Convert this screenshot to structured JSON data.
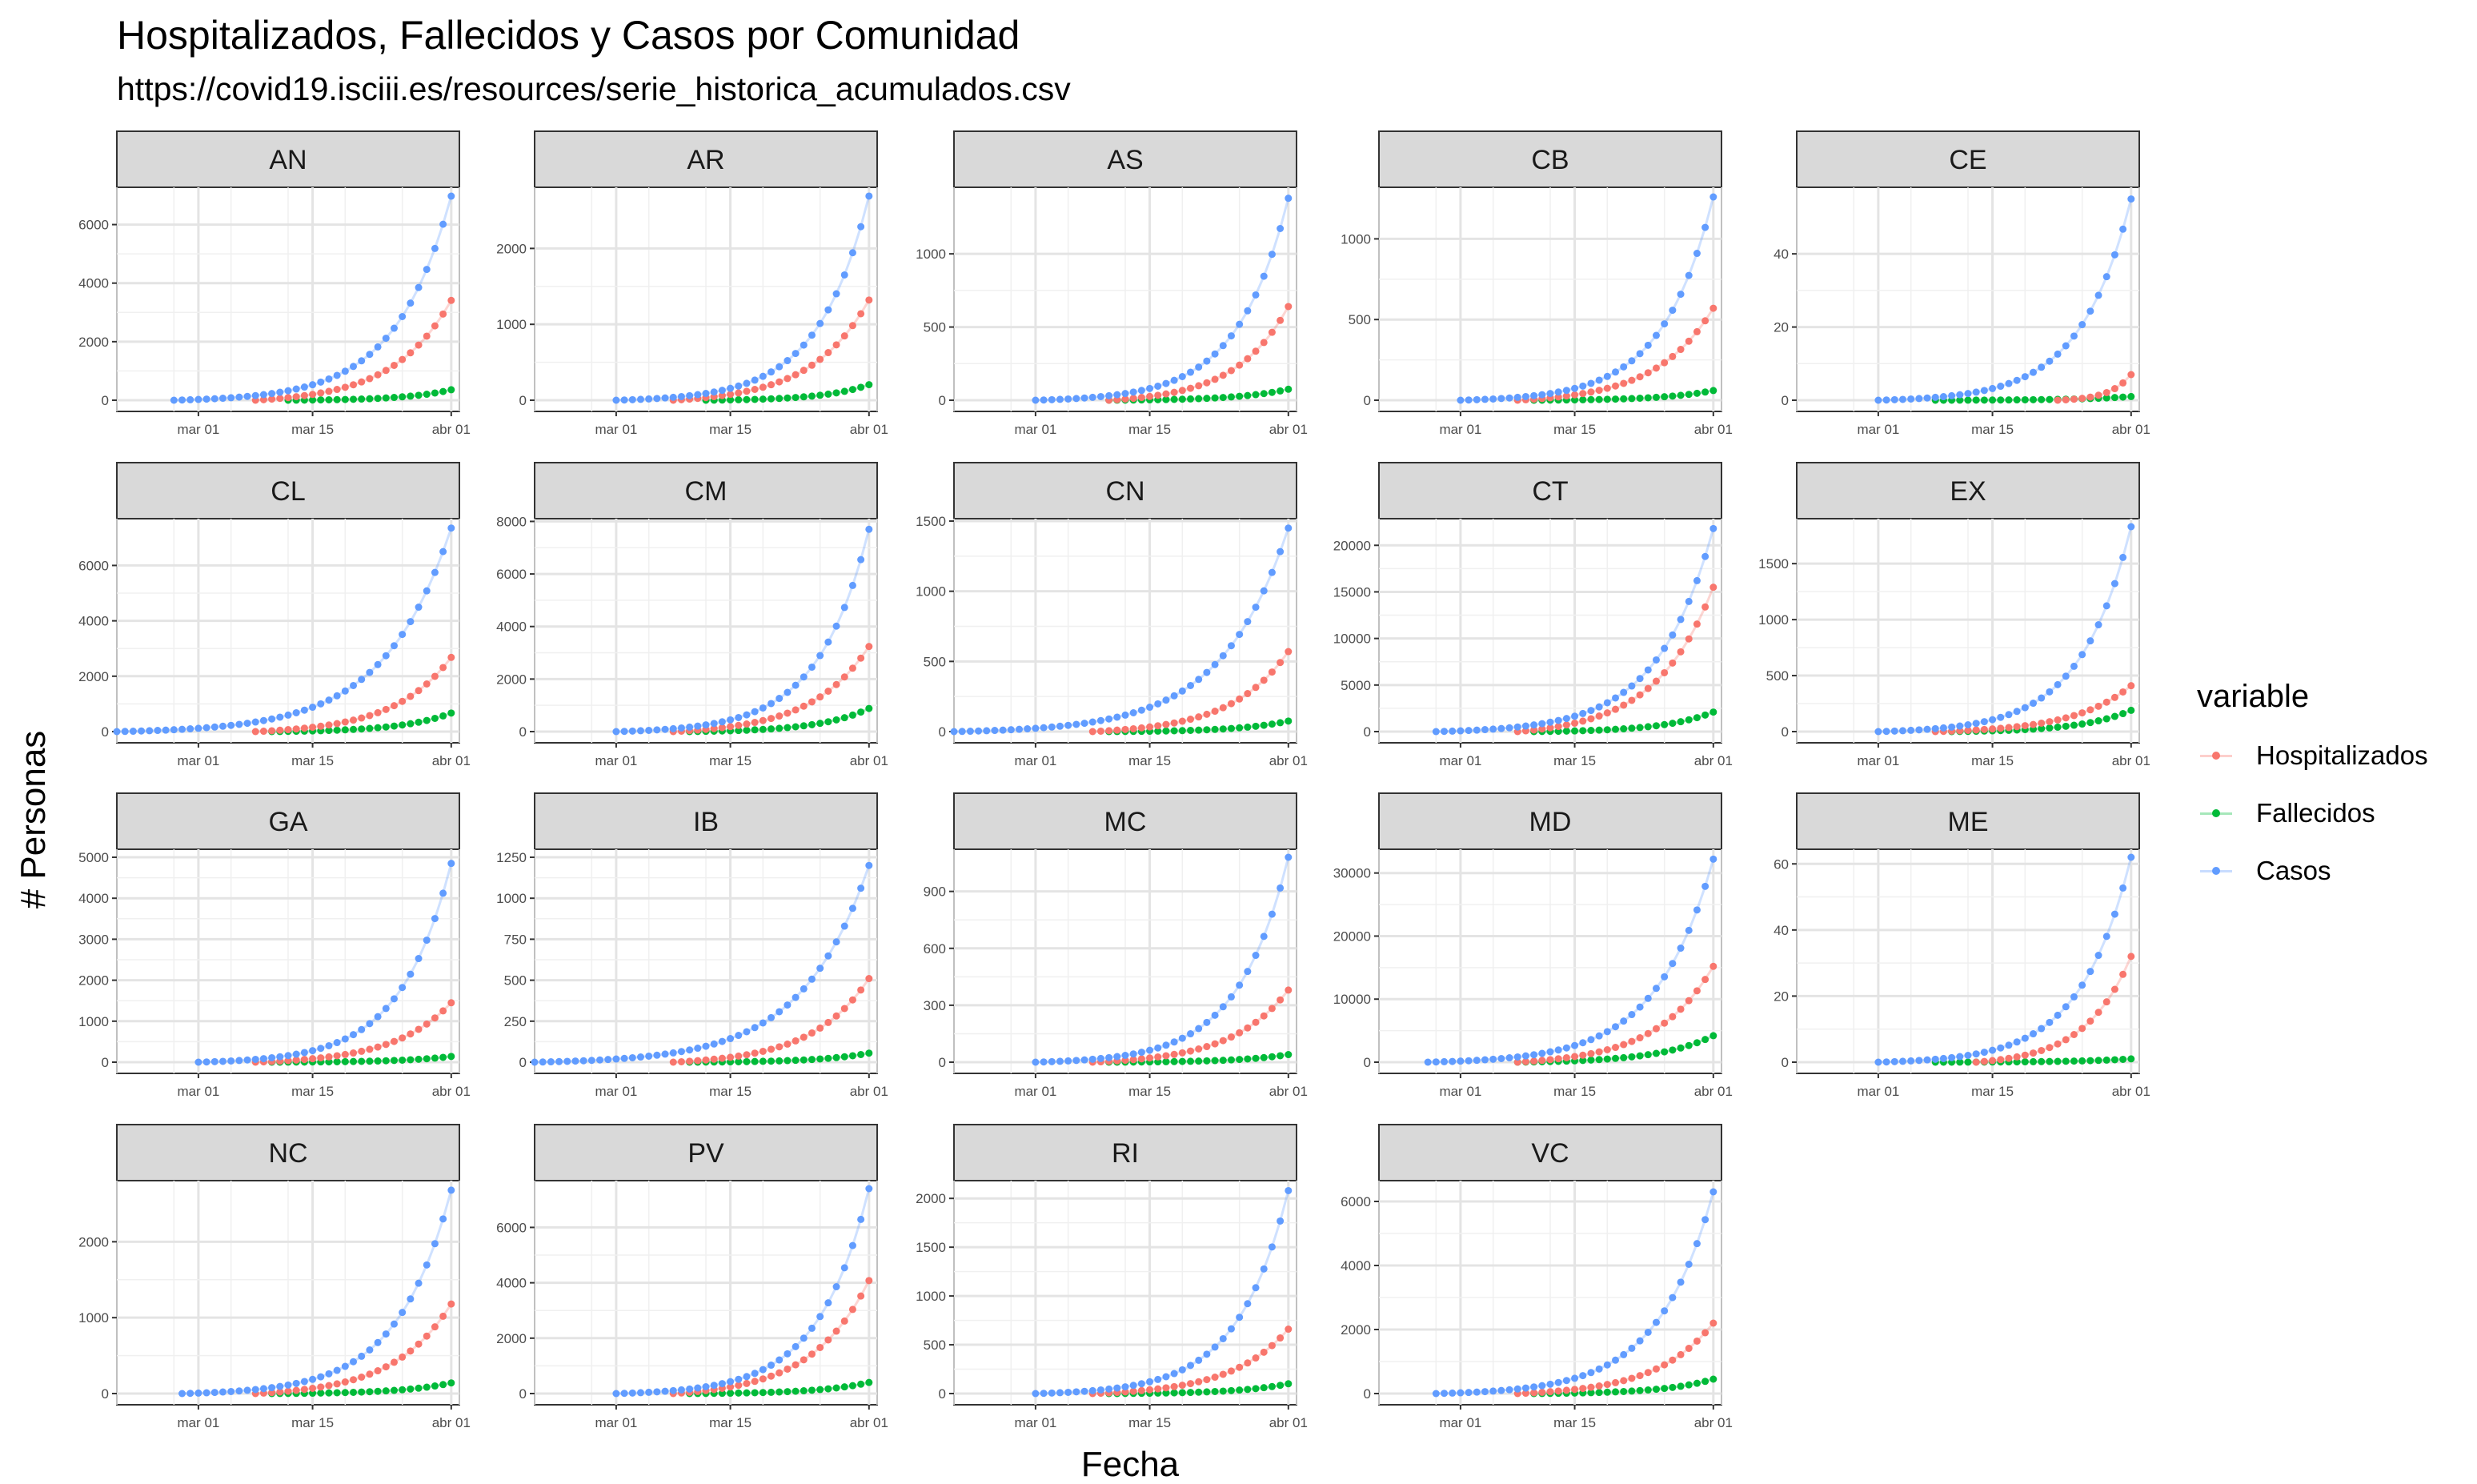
{
  "title": "Hospitalizados, Fallecidos y Casos por Comunidad",
  "subtitle": "https://covid19.isciii.es/resources/serie_historica_acumulados.csv",
  "legend": {
    "title": "variable",
    "items": [
      {
        "label": "Hospitalizados",
        "color": "#F8766D"
      },
      {
        "label": "Fallecidos",
        "color": "#00BA38"
      },
      {
        "label": "Casos",
        "color": "#619CFF"
      }
    ]
  },
  "chart_data": {
    "type": "scatter",
    "xlabel": "Fecha",
    "ylabel": "# Personas",
    "x_ticks": [
      "mar 01",
      "mar 15",
      "abr 01"
    ],
    "x_range": [
      "2020-02-20",
      "2020-04-02"
    ],
    "grid": true,
    "legend_position": "right",
    "facets": [
      {
        "name": "AN",
        "start": "2020-02-27",
        "yticks": [
          0,
          2000,
          4000,
          6000
        ],
        "ymax": 7000,
        "casos_end": 6972,
        "hosp_end": 3410,
        "fall_end": 358,
        "hosp_start": "2020-03-08",
        "fall_start": "2020-03-12"
      },
      {
        "name": "AR",
        "start": "2020-03-01",
        "yticks": [
          0,
          1000,
          2000
        ],
        "ymax": 2700,
        "casos_end": 2690,
        "hosp_end": 1320,
        "fall_end": 205,
        "hosp_start": "2020-03-08",
        "fall_start": "2020-03-12"
      },
      {
        "name": "AS",
        "start": "2020-03-01",
        "yticks": [
          0,
          500,
          1000
        ],
        "ymax": 1400,
        "casos_end": 1380,
        "hosp_end": 640,
        "fall_end": 75,
        "hosp_start": "2020-03-10",
        "fall_start": "2020-03-10"
      },
      {
        "name": "CB",
        "start": "2020-03-01",
        "yticks": [
          0,
          500,
          1000
        ],
        "ymax": 1270,
        "casos_end": 1260,
        "hosp_end": 570,
        "fall_end": 60,
        "hosp_start": "2020-03-08",
        "fall_start": "2020-03-10"
      },
      {
        "name": "CE",
        "start": "2020-03-01",
        "yticks": [
          0,
          20,
          40
        ],
        "ymax": 56,
        "casos_end": 55,
        "hosp_end": 7,
        "fall_end": 1,
        "hosp_start": "2020-03-23",
        "fall_start": "2020-03-08"
      },
      {
        "name": "CL",
        "start": "2020-02-20",
        "yticks": [
          0,
          2000,
          4000,
          6000
        ],
        "ymax": 7400,
        "casos_end": 7350,
        "hosp_end": 2680,
        "fall_end": 670,
        "hosp_start": "2020-03-08",
        "fall_start": "2020-03-10"
      },
      {
        "name": "CM",
        "start": "2020-03-01",
        "yticks": [
          0,
          2000,
          4000,
          6000,
          8000
        ],
        "ymax": 7800,
        "casos_end": 7700,
        "hosp_end": 3240,
        "fall_end": 880,
        "hosp_start": "2020-03-08",
        "fall_start": "2020-03-10"
      },
      {
        "name": "CN",
        "start": "2020-02-20",
        "yticks": [
          0,
          500,
          1000,
          1500
        ],
        "ymax": 1460,
        "casos_end": 1450,
        "hosp_end": 570,
        "fall_end": 75,
        "hosp_start": "2020-03-08",
        "fall_start": "2020-03-10"
      },
      {
        "name": "CT",
        "start": "2020-02-27",
        "yticks": [
          0,
          5000,
          10000,
          15000,
          20000
        ],
        "ymax": 22000,
        "casos_end": 21800,
        "hosp_end": 15500,
        "fall_end": 2100,
        "hosp_start": "2020-03-08",
        "fall_start": "2020-03-10"
      },
      {
        "name": "EX",
        "start": "2020-03-01",
        "yticks": [
          0,
          500,
          1000,
          1500
        ],
        "ymax": 1830,
        "casos_end": 1830,
        "hosp_end": 410,
        "fall_end": 190,
        "hosp_start": "2020-03-08",
        "fall_start": "2020-03-10"
      },
      {
        "name": "GA",
        "start": "2020-03-01",
        "yticks": [
          0,
          1000,
          2000,
          3000,
          4000,
          5000
        ],
        "ymax": 5000,
        "casos_end": 4850,
        "hosp_end": 1450,
        "fall_end": 140,
        "hosp_start": "2020-03-08",
        "fall_start": "2020-03-10"
      },
      {
        "name": "IB",
        "start": "2020-02-20",
        "yticks": [
          0,
          250,
          500,
          750,
          1000,
          1250
        ],
        "ymax": 1250,
        "casos_end": 1200,
        "hosp_end": 510,
        "fall_end": 55,
        "hosp_start": "2020-03-08",
        "fall_start": "2020-03-10"
      },
      {
        "name": "MC",
        "start": "2020-03-01",
        "yticks": [
          0,
          300,
          600,
          900
        ],
        "ymax": 1080,
        "casos_end": 1080,
        "hosp_end": 380,
        "fall_end": 40,
        "hosp_start": "2020-03-08",
        "fall_start": "2020-03-10"
      },
      {
        "name": "MD",
        "start": "2020-02-26",
        "yticks": [
          0,
          10000,
          20000,
          30000
        ],
        "ymax": 32500,
        "casos_end": 32200,
        "hosp_end": 15200,
        "fall_end": 4200,
        "hosp_start": "2020-03-08",
        "fall_start": "2020-03-08"
      },
      {
        "name": "ME",
        "start": "2020-03-01",
        "yticks": [
          0,
          20,
          40,
          60
        ],
        "ymax": 62,
        "casos_end": 62,
        "hosp_end": 32,
        "fall_end": 1,
        "hosp_start": "2020-03-13",
        "fall_start": "2020-03-08"
      },
      {
        "name": "NC",
        "start": "2020-02-28",
        "yticks": [
          0,
          1000,
          2000
        ],
        "ymax": 2700,
        "casos_end": 2680,
        "hosp_end": 1180,
        "fall_end": 140,
        "hosp_start": "2020-03-08",
        "fall_start": "2020-03-10"
      },
      {
        "name": "PV",
        "start": "2020-03-01",
        "yticks": [
          0,
          2000,
          4000,
          6000
        ],
        "ymax": 7400,
        "casos_end": 7400,
        "hosp_end": 4080,
        "fall_end": 400,
        "hosp_start": "2020-03-08",
        "fall_start": "2020-03-10"
      },
      {
        "name": "RI",
        "start": "2020-03-01",
        "yticks": [
          0,
          500,
          1000,
          1500,
          2000
        ],
        "ymax": 2100,
        "casos_end": 2080,
        "hosp_end": 660,
        "fall_end": 100,
        "hosp_start": "2020-03-08",
        "fall_start": "2020-03-10"
      },
      {
        "name": "VC",
        "start": "2020-02-27",
        "yticks": [
          0,
          2000,
          4000,
          6000
        ],
        "ymax": 6400,
        "casos_end": 6300,
        "hosp_end": 2200,
        "fall_end": 450,
        "hosp_start": "2020-03-08",
        "fall_start": "2020-03-10"
      }
    ]
  }
}
